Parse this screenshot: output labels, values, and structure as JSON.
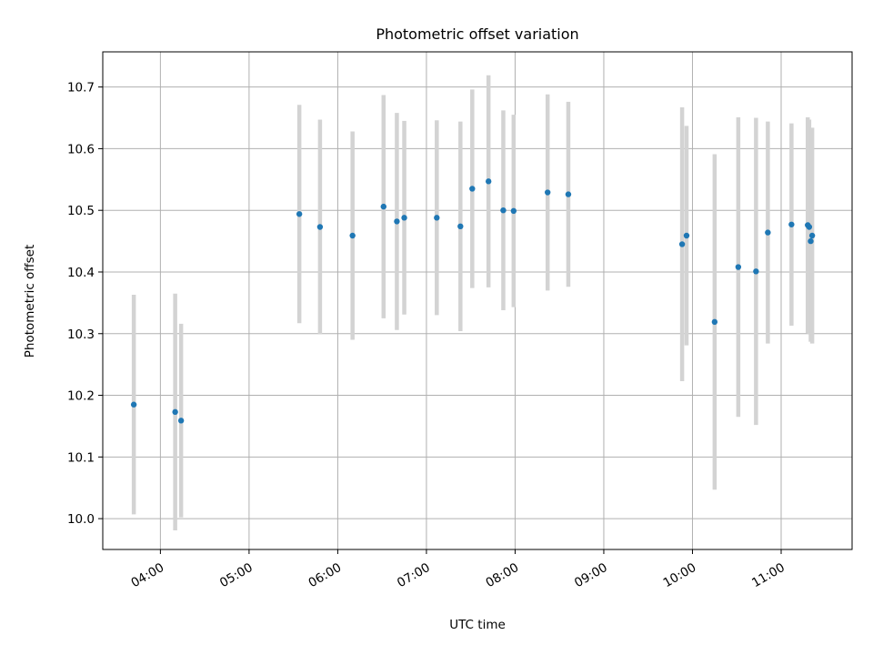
{
  "chart_data": {
    "type": "scatter",
    "title": "Photometric offset variation",
    "xlabel": "UTC time",
    "ylabel": "Photometric offset",
    "x_unit": "UTC time (HH:MM)",
    "xlim": [
      "03:21",
      "11:48"
    ],
    "ylim": [
      9.95,
      10.757
    ],
    "grid": true,
    "x_ticks": [
      "04:00",
      "05:00",
      "06:00",
      "07:00",
      "08:00",
      "09:00",
      "10:00",
      "11:00"
    ],
    "y_ticks": [
      "10.0",
      "10.1",
      "10.2",
      "10.3",
      "10.4",
      "10.5",
      "10.6",
      "10.7"
    ],
    "x_ticks_rotated": true,
    "marker_color": "#1f77b4",
    "errorbar_color": "#d3d3d3",
    "series": [
      {
        "points": [
          {
            "x": "03:42",
            "y": 10.185,
            "err": 0.178
          },
          {
            "x": "04:10",
            "y": 10.173,
            "err": 0.192
          },
          {
            "x": "04:14",
            "y": 10.159,
            "err": 0.157
          },
          {
            "x": "05:34",
            "y": 10.494,
            "err": 0.177
          },
          {
            "x": "05:48",
            "y": 10.473,
            "err": 0.174
          },
          {
            "x": "06:10",
            "y": 10.459,
            "err": 0.169
          },
          {
            "x": "06:31",
            "y": 10.506,
            "err": 0.181
          },
          {
            "x": "06:40",
            "y": 10.482,
            "err": 0.176
          },
          {
            "x": "06:45",
            "y": 10.488,
            "err": 0.157
          },
          {
            "x": "07:07",
            "y": 10.488,
            "err": 0.158
          },
          {
            "x": "07:23",
            "y": 10.474,
            "err": 0.17
          },
          {
            "x": "07:31",
            "y": 10.535,
            "err": 0.161
          },
          {
            "x": "07:42",
            "y": 10.547,
            "err": 0.172
          },
          {
            "x": "07:52",
            "y": 10.5,
            "err": 0.162
          },
          {
            "x": "07:59",
            "y": 10.499,
            "err": 0.156
          },
          {
            "x": "08:22",
            "y": 10.529,
            "err": 0.159
          },
          {
            "x": "08:36",
            "y": 10.526,
            "err": 0.15
          },
          {
            "x": "09:53",
            "y": 10.445,
            "err": 0.222
          },
          {
            "x": "09:56",
            "y": 10.459,
            "err": 0.178
          },
          {
            "x": "10:15",
            "y": 10.319,
            "err": 0.272
          },
          {
            "x": "10:31",
            "y": 10.408,
            "err": 0.243
          },
          {
            "x": "10:43",
            "y": 10.401,
            "err": 0.249
          },
          {
            "x": "10:51",
            "y": 10.464,
            "err": 0.18
          },
          {
            "x": "11:07",
            "y": 10.477,
            "err": 0.164
          },
          {
            "x": "11:18",
            "y": 10.476,
            "err": 0.175
          },
          {
            "x": "11:19",
            "y": 10.473,
            "err": 0.174
          },
          {
            "x": "11:20",
            "y": 10.45,
            "err": 0.163
          },
          {
            "x": "11:21",
            "y": 10.459,
            "err": 0.175
          }
        ]
      }
    ]
  }
}
